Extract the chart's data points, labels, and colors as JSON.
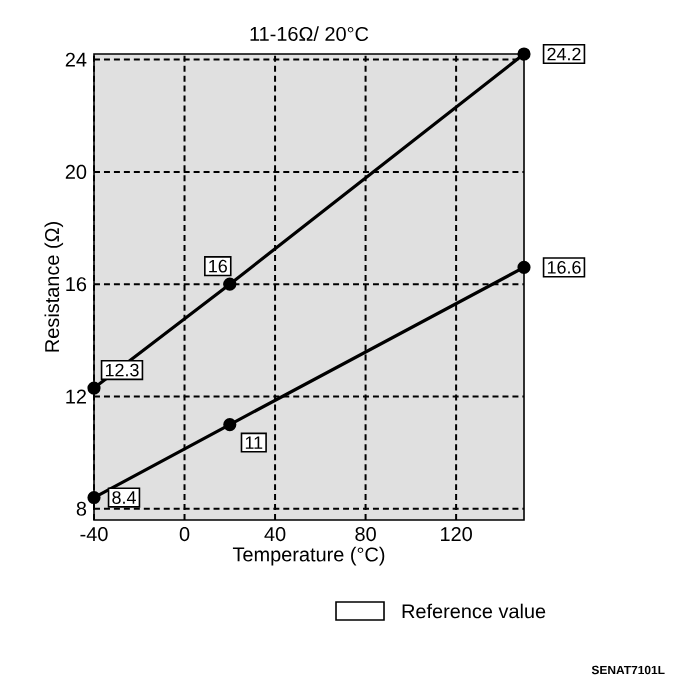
{
  "chart_data": {
    "type": "line",
    "title": "11-16Ω/ 20°C",
    "xlabel": "Temperature (°C)",
    "ylabel": "Resistance (Ω)",
    "x": [
      -40,
      20,
      150
    ],
    "series": [
      {
        "color": "#000000",
        "values": [
          12.3,
          16,
          24.2
        ],
        "value_labels": [
          "12.3",
          "16",
          "24.2"
        ]
      },
      {
        "color": "#000000",
        "values": [
          8.4,
          11,
          16.6
        ],
        "value_labels": [
          "8.4",
          "11",
          "16.6"
        ]
      }
    ],
    "xlim": [
      -40,
      150
    ],
    "ylim": [
      7.6,
      24.2
    ],
    "xticks": [
      -40,
      0,
      40,
      80,
      120
    ],
    "yticks": [
      8,
      12,
      16,
      20,
      24
    ],
    "grid": true,
    "marker": "circle",
    "line_style": "solid",
    "annotations": [
      "Reference value",
      "SENAT7101L"
    ]
  }
}
